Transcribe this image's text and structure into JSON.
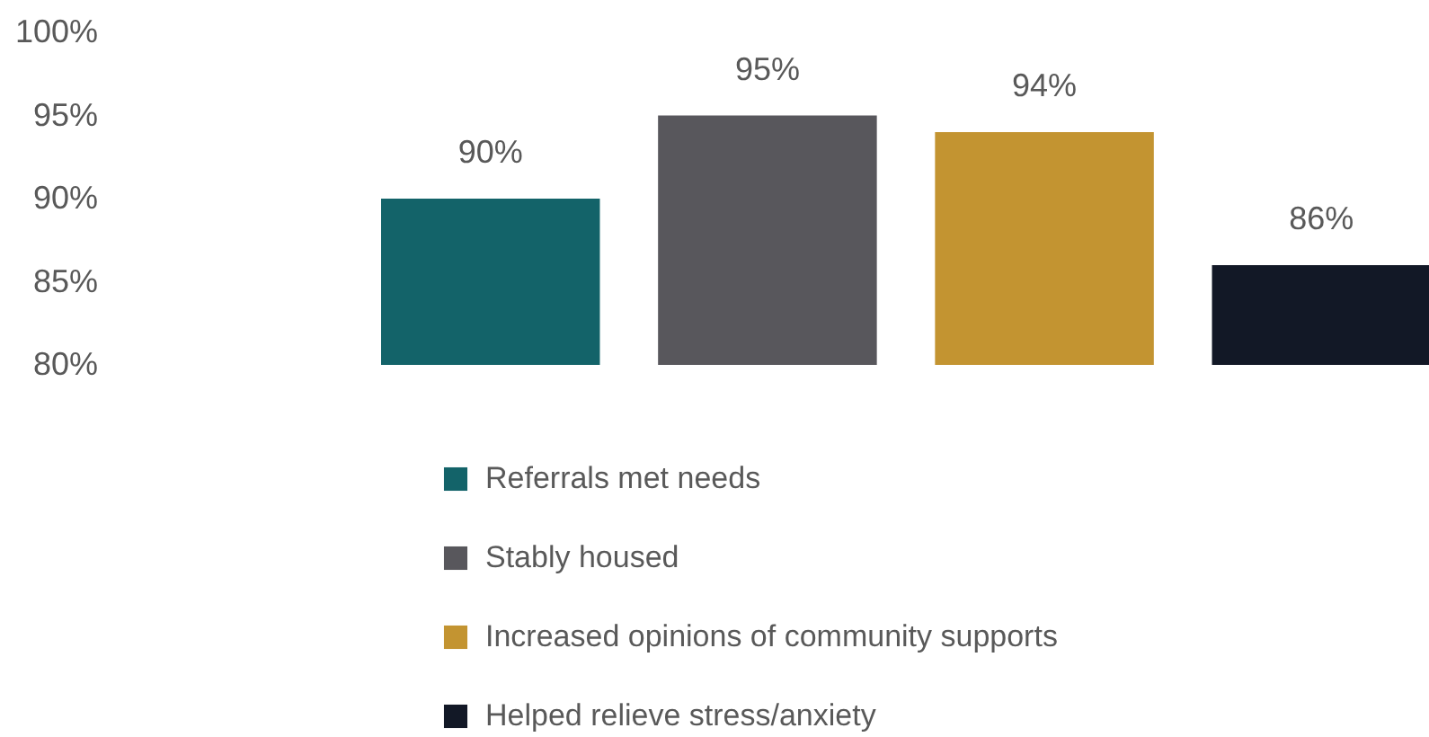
{
  "chart_data": {
    "type": "bar",
    "categories": [
      null
    ],
    "series": [
      {
        "name": "Referrals met needs",
        "color": "#136369",
        "values": [
          90
        ],
        "value_labels": [
          "90%"
        ]
      },
      {
        "name": "Stably housed",
        "color": "#58575c",
        "values": [
          95
        ],
        "value_labels": [
          "95%"
        ]
      },
      {
        "name": "Increased opinions of community supports",
        "color": "#c39431",
        "values": [
          94
        ],
        "value_labels": [
          "94%"
        ]
      },
      {
        "name": "Helped relieve stress/anxiety",
        "color": "#121826",
        "values": [
          86
        ],
        "value_labels": [
          "86%"
        ]
      }
    ],
    "ylim": [
      80,
      100
    ],
    "yticks": [
      {
        "value": 80,
        "label": "80%"
      },
      {
        "value": 85,
        "label": "85%"
      },
      {
        "value": 90,
        "label": "90%"
      },
      {
        "value": 95,
        "label": "95%"
      },
      {
        "value": 100,
        "label": "100%"
      }
    ],
    "grid": false,
    "legend": "bottom"
  }
}
